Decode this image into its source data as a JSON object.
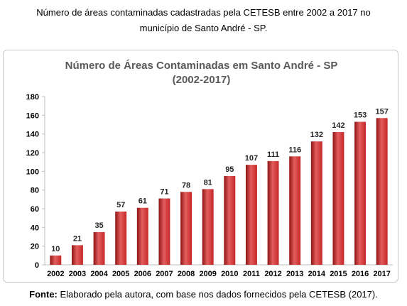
{
  "caption": {
    "line1": "Número de áreas contaminadas cadastradas pela CETESB entre 2002 a 2017 no",
    "line2": "município de Santo André - SP."
  },
  "source": {
    "label": "Fonte:",
    "text": " Elaborado pela autora, com base nos dados fornecidos pela CETESB (2017)."
  },
  "colors": {
    "bar": "#c62828",
    "bar_light": "#e35d5d",
    "bar_dark": "#8e1414",
    "title": "#595959"
  },
  "chart_data": {
    "type": "bar",
    "title": "Número de Áreas Contaminadas em Santo André - SP",
    "subtitle": "(2002-2017)",
    "categories": [
      "2002",
      "2003",
      "2004",
      "2005",
      "2006",
      "2007",
      "2008",
      "2009",
      "2010",
      "2011",
      "2012",
      "2013",
      "2014",
      "2015",
      "2016",
      "2017"
    ],
    "values": [
      10,
      21,
      35,
      57,
      61,
      71,
      78,
      81,
      95,
      107,
      111,
      116,
      132,
      142,
      153,
      157
    ],
    "ylim": [
      0,
      180
    ],
    "yticks": [
      0,
      20,
      40,
      60,
      80,
      100,
      120,
      140,
      160,
      180
    ],
    "grid": false,
    "data_labels": true
  }
}
